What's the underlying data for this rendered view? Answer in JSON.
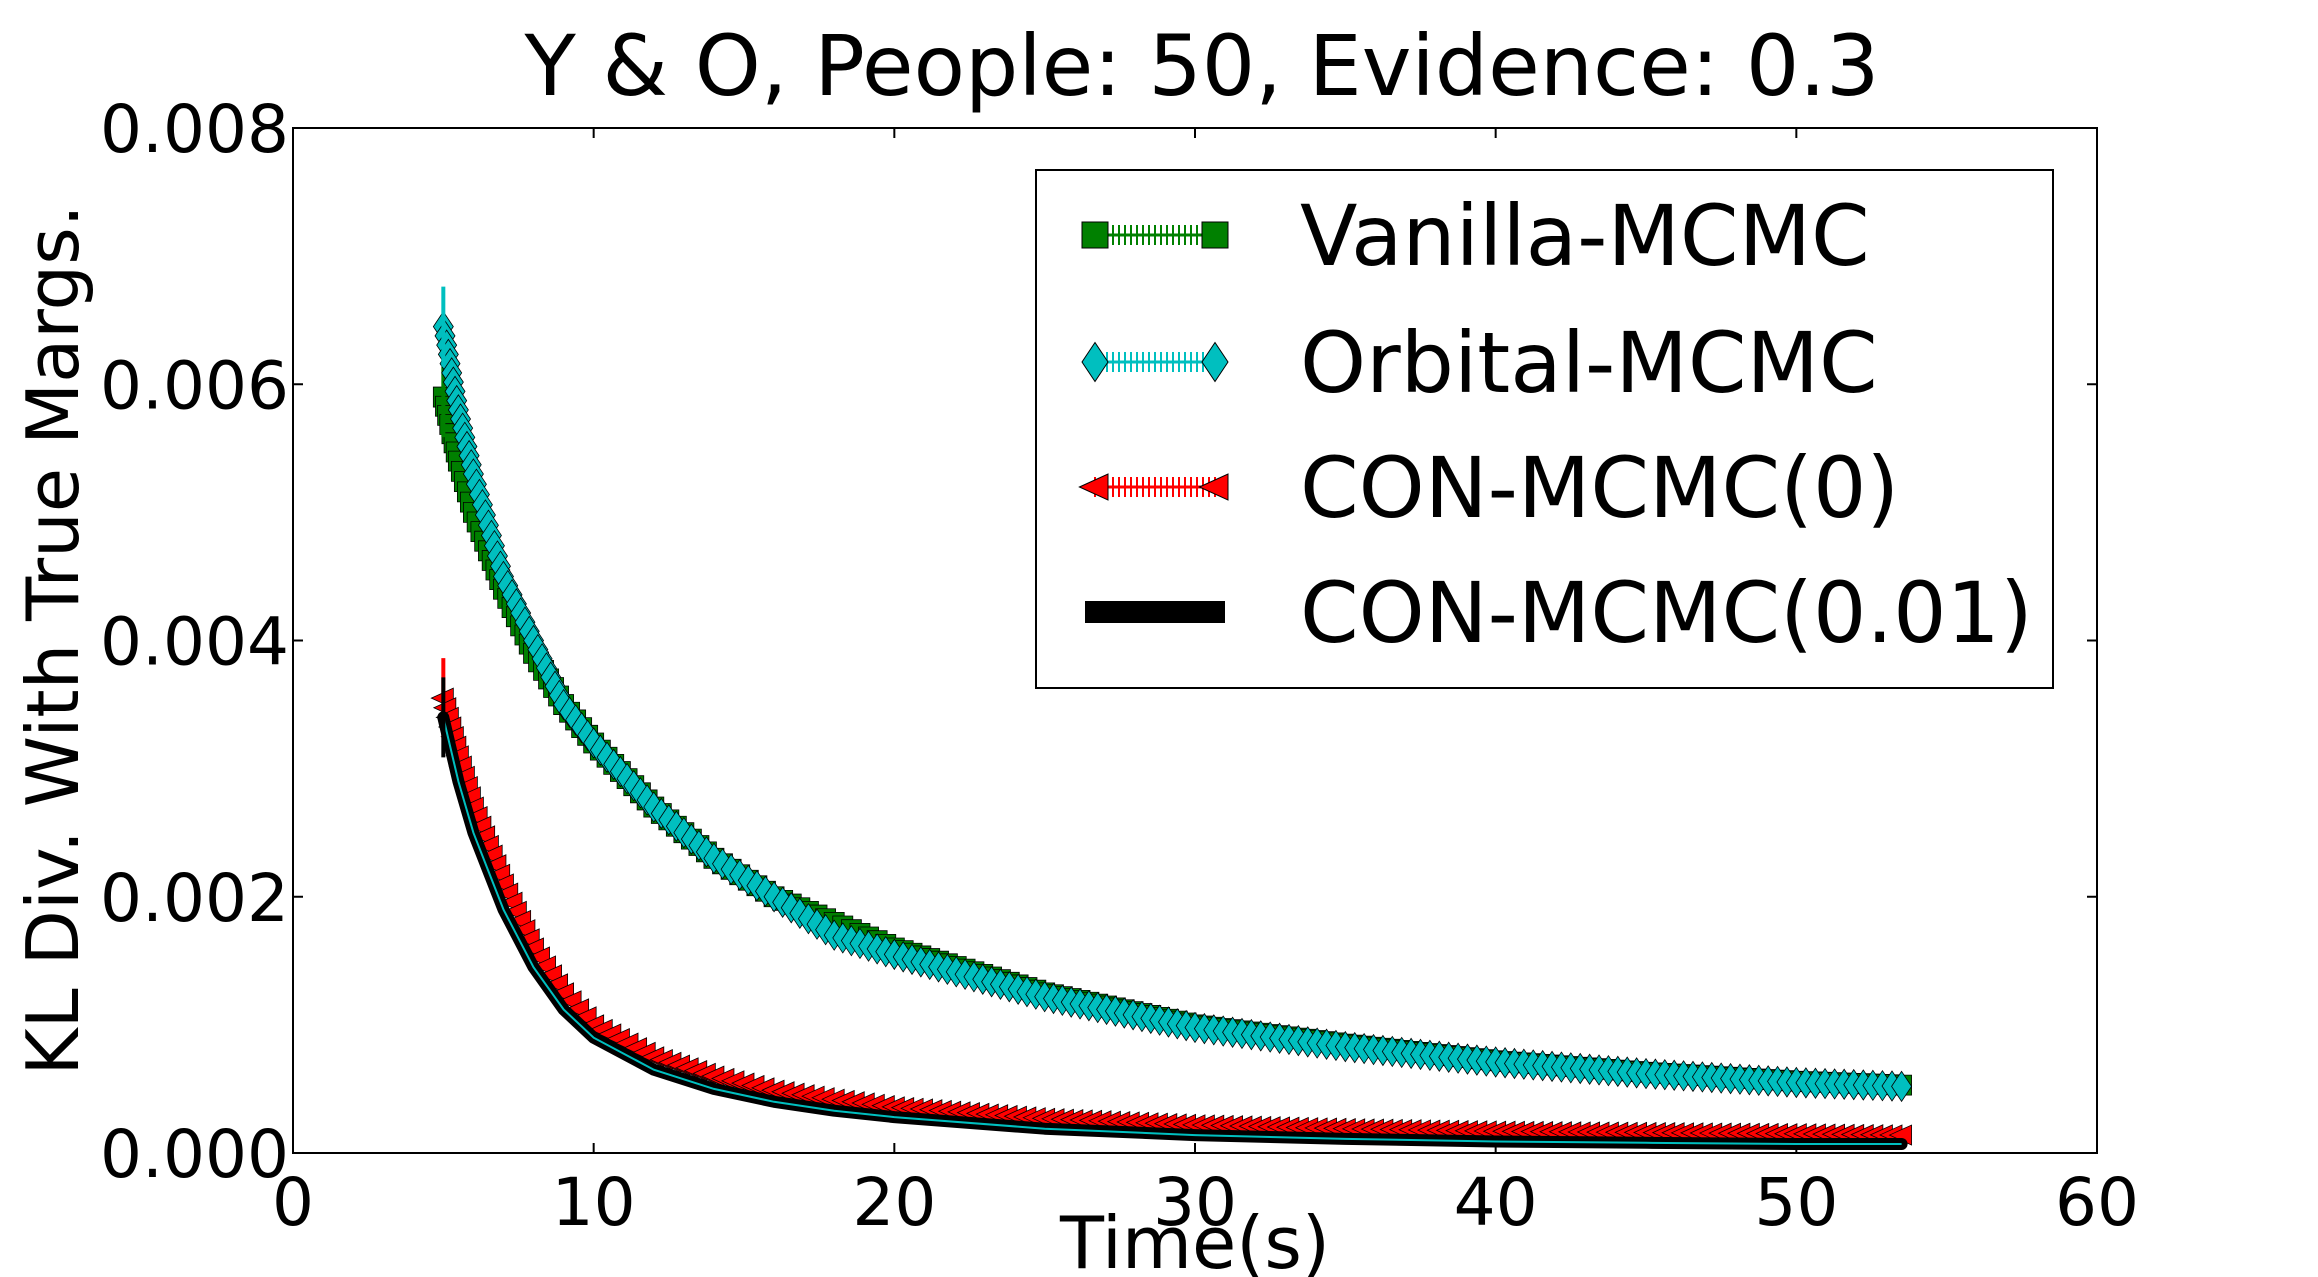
{
  "chart_data": {
    "type": "line",
    "title": "Y & O, People: 50, Evidence: 0.3",
    "xlabel": "Time(s)",
    "ylabel": "KL Div. With True Margs.",
    "xlim": [
      0,
      60
    ],
    "ylim": [
      0,
      0.008
    ],
    "x_ticks": [
      0,
      10,
      20,
      30,
      40,
      50,
      60
    ],
    "x_tick_labels": [
      "0",
      "10",
      "20",
      "30",
      "40",
      "50",
      "60"
    ],
    "y_ticks": [
      0,
      0.002,
      0.004,
      0.006,
      0.008
    ],
    "y_tick_labels": [
      "0.000",
      "0.002",
      "0.004",
      "0.006",
      "0.008"
    ],
    "legend_position": "top-right",
    "x": [
      5,
      5.5,
      6,
      6.5,
      7,
      8,
      9,
      10,
      12,
      14,
      16,
      18,
      20,
      25,
      30,
      35,
      40,
      45,
      50,
      53.5
    ],
    "series": [
      {
        "name": "Vanilla-MCMC",
        "color": "#008000",
        "marker": "square",
        "values": [
          0.0059,
          0.0054,
          0.005,
          0.0047,
          0.0044,
          0.0039,
          0.0035,
          0.0032,
          0.0027,
          0.0023,
          0.002,
          0.0018,
          0.0016,
          0.00125,
          0.001,
          0.00085,
          0.00072,
          0.00063,
          0.00056,
          0.00053
        ]
      },
      {
        "name": "Orbital-MCMC",
        "color": "#00bfbf",
        "marker": "diamond",
        "values": [
          0.00645,
          0.0058,
          0.0053,
          0.0049,
          0.0045,
          0.004,
          0.0035,
          0.0032,
          0.0027,
          0.0023,
          0.002,
          0.0017,
          0.00155,
          0.00122,
          0.00098,
          0.00083,
          0.00071,
          0.00062,
          0.00055,
          0.00052
        ]
      },
      {
        "name": "CON-MCMC(0)",
        "color": "#ff0000",
        "marker": "triangle-left",
        "values": [
          0.00355,
          0.0031,
          0.0027,
          0.0024,
          0.0021,
          0.0016,
          0.00125,
          0.001,
          0.00075,
          0.0006,
          0.00049,
          0.00042,
          0.00036,
          0.00027,
          0.00022,
          0.00019,
          0.00017,
          0.00016,
          0.00015,
          0.00014
        ]
      },
      {
        "name": "CON-MCMC(0.01)",
        "color": "#000000",
        "marker": "none",
        "values": [
          0.0034,
          0.0029,
          0.0025,
          0.0022,
          0.0019,
          0.00145,
          0.00112,
          0.0009,
          0.00065,
          0.0005,
          0.0004,
          0.00033,
          0.00028,
          0.00019,
          0.00014,
          0.00011,
          9e-05,
          8e-05,
          7e-05,
          7e-05
        ]
      }
    ]
  }
}
